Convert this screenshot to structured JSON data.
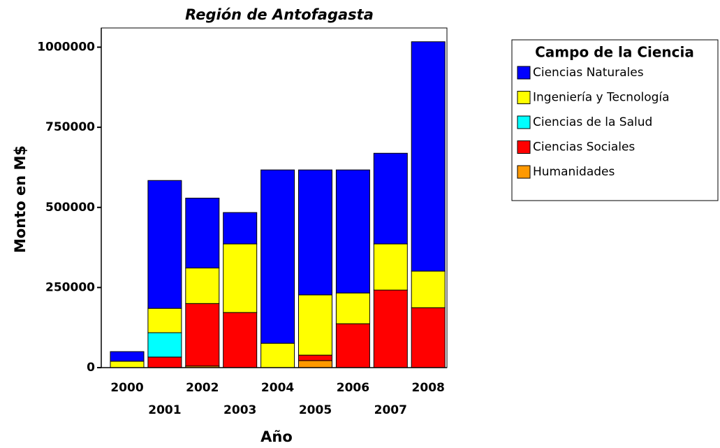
{
  "chart_data": {
    "type": "stacked_bar",
    "title": "Región de Antofagasta",
    "x_label": "Año",
    "y_label": "Monto en M$",
    "categories": [
      "2000",
      "2001",
      "2002",
      "2003",
      "2004",
      "2005",
      "2006",
      "2007",
      "2008"
    ],
    "legend_title": "Campo de la Ciencia",
    "series": [
      {
        "name": "Ciencias Naturales",
        "color": "#0000ff",
        "values": [
          30000,
          399000,
          218000,
          98000,
          541000,
          390000,
          384000,
          283000,
          716000
        ]
      },
      {
        "name": "Ingeniería y Tecnología",
        "color": "#ffff00",
        "values": [
          20000,
          76000,
          111000,
          214000,
          76000,
          188000,
          96000,
          144000,
          114000
        ]
      },
      {
        "name": "Ciencias de la Salud",
        "color": "#00ffff",
        "values": [
          0,
          76000,
          0,
          0,
          0,
          0,
          0,
          0,
          0
        ]
      },
      {
        "name": "Ciencias Sociales",
        "color": "#ff0000",
        "values": [
          0,
          33000,
          195000,
          172000,
          0,
          17000,
          137000,
          242000,
          187000
        ]
      },
      {
        "name": "Humanidades",
        "color": "#ff9900",
        "values": [
          0,
          0,
          5000,
          0,
          0,
          22000,
          0,
          0,
          0
        ]
      }
    ],
    "ylim": [
      0,
      1060000
    ],
    "yticks": [
      0,
      250000,
      500000,
      750000,
      1000000
    ]
  }
}
